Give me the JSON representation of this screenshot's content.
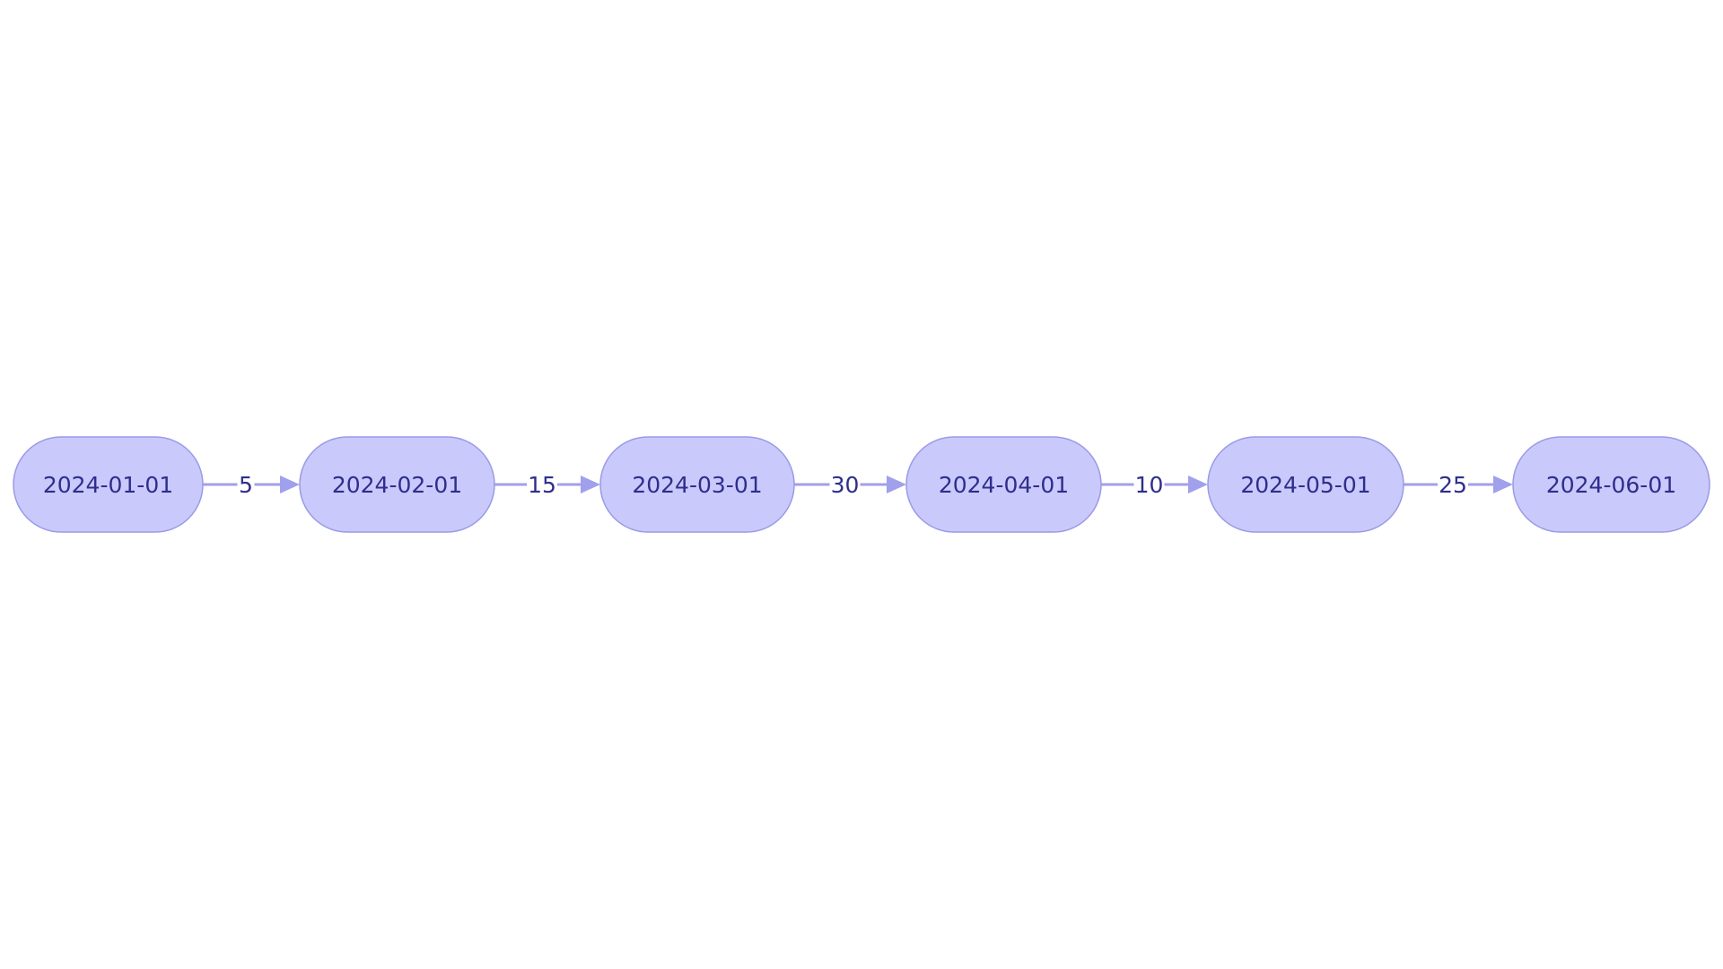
{
  "diagram": {
    "type": "flowchart",
    "direction": "left-to-right",
    "colors": {
      "node_fill": "#c9c9fc",
      "node_stroke": "#9a9ae6",
      "edge": "#a0a0ec",
      "text": "#2e2e8c"
    },
    "nodes": [
      {
        "id": "n1",
        "label": "2024-01-01"
      },
      {
        "id": "n2",
        "label": "2024-02-01"
      },
      {
        "id": "n3",
        "label": "2024-03-01"
      },
      {
        "id": "n4",
        "label": "2024-04-01"
      },
      {
        "id": "n5",
        "label": "2024-05-01"
      },
      {
        "id": "n6",
        "label": "2024-06-01"
      }
    ],
    "edges": [
      {
        "from": "n1",
        "to": "n2",
        "label": "5"
      },
      {
        "from": "n2",
        "to": "n3",
        "label": "15"
      },
      {
        "from": "n3",
        "to": "n4",
        "label": "30"
      },
      {
        "from": "n4",
        "to": "n5",
        "label": "10"
      },
      {
        "from": "n5",
        "to": "n6",
        "label": "25"
      }
    ]
  }
}
